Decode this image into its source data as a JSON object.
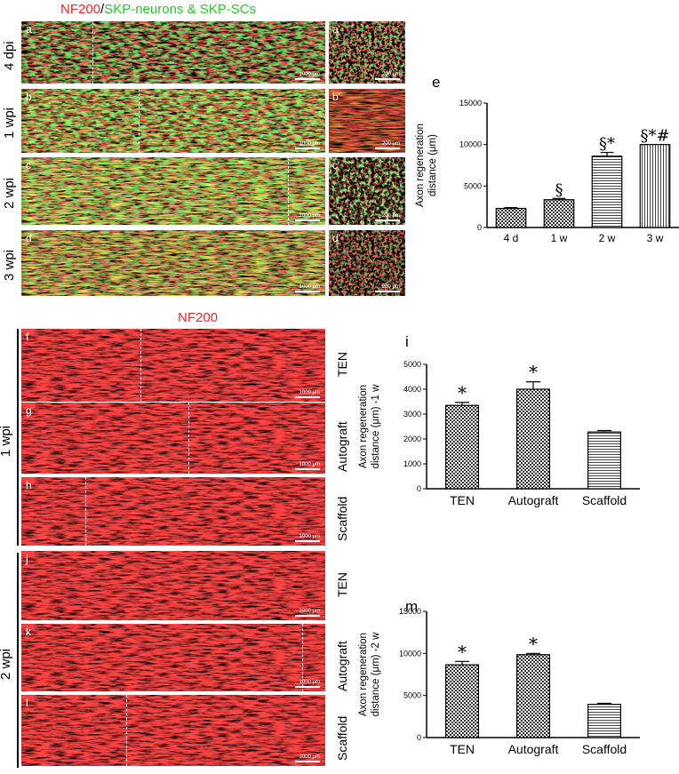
{
  "header": {
    "nf200": "NF200",
    "slash": "/",
    "green_label": "SKP-neurons & SKP-SCs"
  },
  "header2": {
    "nf200": "NF200"
  },
  "colors": {
    "red": "#ff1a1a",
    "green": "#22dd22",
    "yellow": "#e8d020"
  },
  "top_rows": [
    {
      "time": "4 dpi",
      "label": "a",
      "scale": "1000 μm",
      "inset_label": "a'",
      "inset_scale": "200 μm"
    },
    {
      "time": "1 wpi",
      "label": "b",
      "scale": "1000 μm",
      "inset_label": "b'",
      "inset_scale": "200 μm"
    },
    {
      "time": "2 wpi",
      "label": "c",
      "scale": "1000 μm",
      "inset_label": "c'",
      "inset_scale": "200 μm"
    },
    {
      "time": "3 wpi",
      "label": "d",
      "scale": "1000 μm",
      "inset_label": "d'",
      "inset_scale": "200 μm"
    }
  ],
  "groups": [
    {
      "time": "1 wpi",
      "panels": [
        {
          "label": "f",
          "group": "TEN",
          "scale": "1000 μm"
        },
        {
          "label": "g",
          "group": "Autograft",
          "scale": "1000 μm"
        },
        {
          "label": "h",
          "group": "Scaffold",
          "scale": "1000 μm"
        }
      ]
    },
    {
      "time": "2 wpi",
      "panels": [
        {
          "label": "j",
          "group": "TEN",
          "scale": "1000 μm"
        },
        {
          "label": "k",
          "group": "Autograft",
          "scale": "1000 μm"
        },
        {
          "label": "l",
          "group": "Scaffold",
          "scale": "1000 μm"
        }
      ]
    }
  ],
  "chart_data": [
    {
      "panel": "e",
      "type": "bar",
      "ylabel": [
        "Axon regeneration",
        "distance (μm)"
      ],
      "categories": [
        "4 d",
        "1 w",
        "2 w",
        "3 w"
      ],
      "values": [
        2300,
        3350,
        8600,
        10000
      ],
      "errors": [
        100,
        150,
        450,
        0
      ],
      "annotations": [
        "",
        "§",
        "§*",
        "§*#"
      ],
      "ylim": [
        0,
        15000
      ],
      "yticks": [
        0,
        5000,
        10000,
        15000
      ],
      "patterns": [
        "checker",
        "checker",
        "hstripe",
        "vstripe"
      ]
    },
    {
      "panel": "i",
      "type": "bar",
      "ylabel": [
        "Axon regeneration",
        "distance (μm) -1 w"
      ],
      "categories": [
        "TEN",
        "Autograft",
        "Scaffold"
      ],
      "values": [
        3350,
        4000,
        2280
      ],
      "errors": [
        120,
        300,
        60
      ],
      "annotations": [
        "*",
        "*",
        ""
      ],
      "ylim": [
        0,
        5000
      ],
      "yticks": [
        0,
        1000,
        2000,
        3000,
        4000,
        5000
      ],
      "patterns": [
        "checker",
        "checker",
        "hstripe"
      ]
    },
    {
      "panel": "m",
      "type": "bar",
      "ylabel": [
        "Axon regeneration",
        "distance (μm) -2 w"
      ],
      "categories": [
        "TEN",
        "Autograft",
        "Scaffold"
      ],
      "values": [
        8650,
        9850,
        3950
      ],
      "errors": [
        400,
        150,
        120
      ],
      "annotations": [
        "*",
        "*",
        ""
      ],
      "ylim": [
        0,
        15000
      ],
      "yticks": [
        0,
        5000,
        10000,
        15000
      ],
      "patterns": [
        "checker",
        "checker",
        "hstripe"
      ]
    }
  ]
}
